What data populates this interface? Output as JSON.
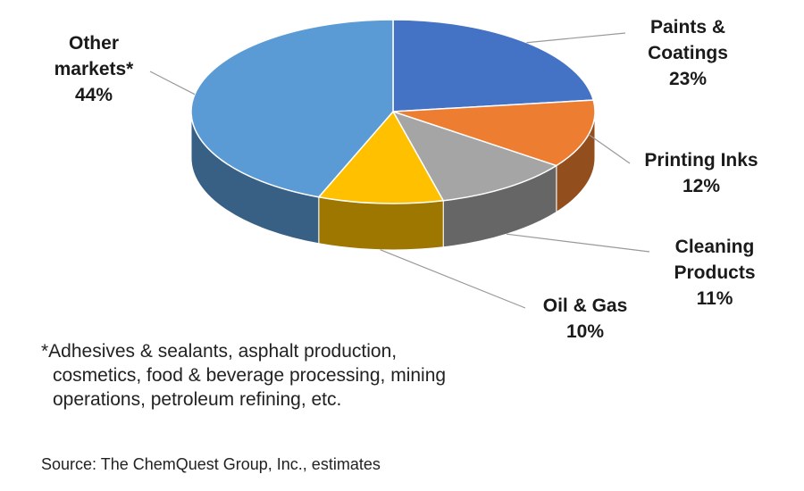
{
  "chart_data": {
    "type": "pie",
    "style": "3d",
    "slices": [
      {
        "label_lines": [
          "Paints &",
          "Coatings"
        ],
        "pct_label": "23%",
        "value": 23,
        "color": "#4472c4"
      },
      {
        "label_lines": [
          "Printing Inks"
        ],
        "pct_label": "12%",
        "value": 12,
        "color": "#ed7d31"
      },
      {
        "label_lines": [
          "Cleaning",
          "Products"
        ],
        "pct_label": "11%",
        "value": 11,
        "color": "#a5a5a5"
      },
      {
        "label_lines": [
          "Oil & Gas"
        ],
        "pct_label": "10%",
        "value": 10,
        "color": "#ffc000"
      },
      {
        "label_lines": [
          "Other",
          "markets*"
        ],
        "pct_label": "44%",
        "value": 44,
        "color": "#5b9bd5"
      }
    ],
    "legend": "none"
  },
  "footnote": {
    "line1": "*Adhesives & sealants, asphalt production,",
    "line2": "cosmetics, food & beverage processing, mining",
    "line3": "operations, petroleum refining, etc."
  },
  "source": "Source: The ChemQuest Group, Inc., estimates"
}
